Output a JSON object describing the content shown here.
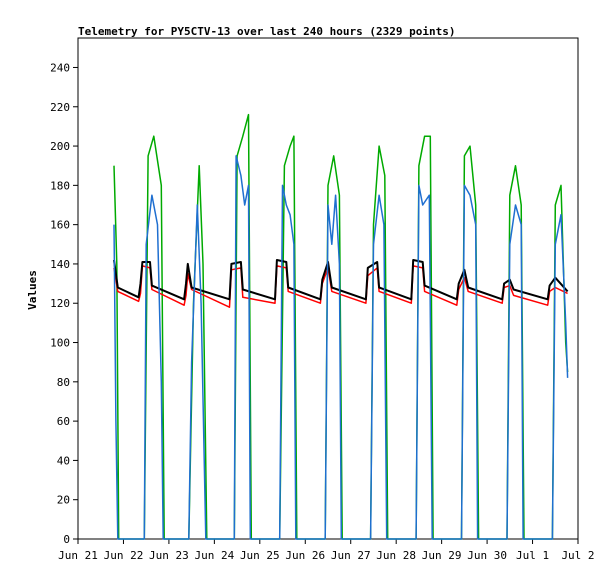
{
  "chart_data": {
    "type": "line",
    "title": "Telemetry for PY5CTV-13 over last 240 hours (2329 points)",
    "xlabel": "",
    "ylabel": "Values",
    "ylim": [
      0,
      255
    ],
    "yticks": [
      0,
      20,
      40,
      60,
      80,
      100,
      120,
      140,
      160,
      180,
      200,
      220,
      240
    ],
    "xlim": [
      "2021-06-21",
      "2021-07-02"
    ],
    "xticks": [
      {
        "date": "2021-06-21",
        "label": "Jun 21"
      },
      {
        "date": "2021-06-22",
        "label": "Jun 22"
      },
      {
        "date": "2021-06-23",
        "label": "Jun 23"
      },
      {
        "date": "2021-06-24",
        "label": "Jun 24"
      },
      {
        "date": "2021-06-25",
        "label": "Jun 25"
      },
      {
        "date": "2021-06-26",
        "label": "Jun 26"
      },
      {
        "date": "2021-06-27",
        "label": "Jun 27"
      },
      {
        "date": "2021-06-28",
        "label": "Jun 28"
      },
      {
        "date": "2021-06-29",
        "label": "Jun 29"
      },
      {
        "date": "2021-06-30",
        "label": "Jun 30"
      },
      {
        "date": "2021-07-01",
        "label": "Jul 1"
      },
      {
        "date": "2021-07-02",
        "label": "Jul 2"
      }
    ],
    "grid": false,
    "legend": "none",
    "series": [
      {
        "color": "#00aa00",
        "points": [
          [
            "2021-06-21T19:00",
            190
          ],
          [
            "2021-06-21T20:30",
            140
          ],
          [
            "2021-06-21T21:30",
            0
          ],
          [
            "2021-06-22T11:00",
            0
          ],
          [
            "2021-06-22T13:00",
            195
          ],
          [
            "2021-06-22T16:00",
            205
          ],
          [
            "2021-06-22T20:00",
            180
          ],
          [
            "2021-06-22T21:30",
            0
          ],
          [
            "2021-06-23T10:30",
            0
          ],
          [
            "2021-06-23T13:00",
            120
          ],
          [
            "2021-06-23T16:00",
            190
          ],
          [
            "2021-06-23T18:00",
            140
          ],
          [
            "2021-06-23T20:00",
            0
          ],
          [
            "2021-06-24T10:30",
            0
          ],
          [
            "2021-06-24T12:00",
            195
          ],
          [
            "2021-06-24T15:00",
            205
          ],
          [
            "2021-06-24T18:00",
            216
          ],
          [
            "2021-06-24T19:30",
            0
          ],
          [
            "2021-06-25T10:30",
            0
          ],
          [
            "2021-06-25T13:00",
            190
          ],
          [
            "2021-06-25T16:00",
            200
          ],
          [
            "2021-06-25T18:00",
            205
          ],
          [
            "2021-06-25T19:30",
            0
          ],
          [
            "2021-06-26T10:30",
            0
          ],
          [
            "2021-06-26T12:00",
            180
          ],
          [
            "2021-06-26T15:00",
            195
          ],
          [
            "2021-06-26T18:00",
            175
          ],
          [
            "2021-06-26T19:30",
            0
          ],
          [
            "2021-06-27T10:30",
            0
          ],
          [
            "2021-06-27T12:00",
            160
          ],
          [
            "2021-06-27T15:00",
            200
          ],
          [
            "2021-06-27T18:00",
            185
          ],
          [
            "2021-06-27T19:30",
            0
          ],
          [
            "2021-06-28T10:30",
            0
          ],
          [
            "2021-06-28T12:00",
            190
          ],
          [
            "2021-06-28T15:00",
            205
          ],
          [
            "2021-06-28T18:00",
            205
          ],
          [
            "2021-06-28T19:30",
            0
          ],
          [
            "2021-06-29T10:30",
            0
          ],
          [
            "2021-06-29T12:00",
            195
          ],
          [
            "2021-06-29T15:00",
            200
          ],
          [
            "2021-06-29T18:00",
            170
          ],
          [
            "2021-06-29T19:30",
            0
          ],
          [
            "2021-06-30T10:30",
            0
          ],
          [
            "2021-06-30T12:00",
            175
          ],
          [
            "2021-06-30T15:00",
            190
          ],
          [
            "2021-06-30T18:00",
            170
          ],
          [
            "2021-06-30T19:30",
            0
          ],
          [
            "2021-07-01T10:30",
            0
          ],
          [
            "2021-07-01T12:00",
            170
          ],
          [
            "2021-07-01T15:00",
            180
          ],
          [
            "2021-07-01T17:30",
            100
          ],
          [
            "2021-07-01T18:30",
            85
          ]
        ]
      },
      {
        "color": "#ff0000",
        "points": [
          [
            "2021-06-21T19:00",
            138
          ],
          [
            "2021-06-21T21:00",
            126
          ],
          [
            "2021-06-22T08:00",
            121
          ],
          [
            "2021-06-22T09:00",
            125
          ],
          [
            "2021-06-22T10:00",
            139
          ],
          [
            "2021-06-22T14:00",
            138
          ],
          [
            "2021-06-22T15:00",
            127
          ],
          [
            "2021-06-23T08:00",
            119
          ],
          [
            "2021-06-23T09:00",
            124
          ],
          [
            "2021-06-23T10:00",
            135
          ],
          [
            "2021-06-23T12:00",
            127
          ],
          [
            "2021-06-24T08:00",
            118
          ],
          [
            "2021-06-24T09:00",
            137
          ],
          [
            "2021-06-24T14:00",
            138
          ],
          [
            "2021-06-24T15:00",
            123
          ],
          [
            "2021-06-25T08:00",
            120
          ],
          [
            "2021-06-25T09:00",
            139
          ],
          [
            "2021-06-25T14:00",
            138
          ],
          [
            "2021-06-25T15:00",
            126
          ],
          [
            "2021-06-26T08:00",
            120
          ],
          [
            "2021-06-26T09:00",
            130
          ],
          [
            "2021-06-26T12:00",
            138
          ],
          [
            "2021-06-26T14:00",
            126
          ],
          [
            "2021-06-27T08:00",
            120
          ],
          [
            "2021-06-27T09:00",
            134
          ],
          [
            "2021-06-27T14:00",
            138
          ],
          [
            "2021-06-27T15:00",
            126
          ],
          [
            "2021-06-28T08:00",
            120
          ],
          [
            "2021-06-28T09:00",
            139
          ],
          [
            "2021-06-28T14:00",
            138
          ],
          [
            "2021-06-28T15:00",
            126
          ],
          [
            "2021-06-29T08:00",
            119
          ],
          [
            "2021-06-29T09:00",
            127
          ],
          [
            "2021-06-29T12:00",
            133
          ],
          [
            "2021-06-29T14:00",
            126
          ],
          [
            "2021-06-30T08:00",
            120
          ],
          [
            "2021-06-30T09:00",
            128
          ],
          [
            "2021-06-30T12:00",
            129
          ],
          [
            "2021-06-30T14:00",
            124
          ],
          [
            "2021-07-01T08:00",
            119
          ],
          [
            "2021-07-01T09:00",
            126
          ],
          [
            "2021-07-01T12:00",
            128
          ],
          [
            "2021-07-01T18:30",
            125
          ]
        ]
      },
      {
        "color": "#000000",
        "points": [
          [
            "2021-06-21T19:00",
            142
          ],
          [
            "2021-06-21T21:00",
            128
          ],
          [
            "2021-06-22T08:00",
            123
          ],
          [
            "2021-06-22T09:00",
            130
          ],
          [
            "2021-06-22T10:00",
            141
          ],
          [
            "2021-06-22T14:00",
            141
          ],
          [
            "2021-06-22T15:00",
            129
          ],
          [
            "2021-06-23T08:00",
            122
          ],
          [
            "2021-06-23T09:00",
            130
          ],
          [
            "2021-06-23T10:00",
            140
          ],
          [
            "2021-06-23T12:00",
            128
          ],
          [
            "2021-06-24T08:00",
            122
          ],
          [
            "2021-06-24T09:00",
            140
          ],
          [
            "2021-06-24T14:00",
            141
          ],
          [
            "2021-06-24T15:00",
            127
          ],
          [
            "2021-06-25T08:00",
            122
          ],
          [
            "2021-06-25T09:00",
            142
          ],
          [
            "2021-06-25T14:00",
            141
          ],
          [
            "2021-06-25T15:00",
            128
          ],
          [
            "2021-06-26T08:00",
            122
          ],
          [
            "2021-06-26T09:00",
            132
          ],
          [
            "2021-06-26T12:00",
            141
          ],
          [
            "2021-06-26T14:00",
            128
          ],
          [
            "2021-06-27T08:00",
            122
          ],
          [
            "2021-06-27T09:00",
            138
          ],
          [
            "2021-06-27T14:00",
            141
          ],
          [
            "2021-06-27T15:00",
            128
          ],
          [
            "2021-06-28T08:00",
            122
          ],
          [
            "2021-06-28T09:00",
            142
          ],
          [
            "2021-06-28T14:00",
            141
          ],
          [
            "2021-06-28T15:00",
            129
          ],
          [
            "2021-06-29T08:00",
            122
          ],
          [
            "2021-06-29T09:00",
            130
          ],
          [
            "2021-06-29T12:00",
            137
          ],
          [
            "2021-06-29T14:00",
            128
          ],
          [
            "2021-06-30T08:00",
            122
          ],
          [
            "2021-06-30T09:00",
            130
          ],
          [
            "2021-06-30T12:00",
            132
          ],
          [
            "2021-06-30T14:00",
            127
          ],
          [
            "2021-07-01T08:00",
            122
          ],
          [
            "2021-07-01T09:00",
            129
          ],
          [
            "2021-07-01T12:00",
            133
          ],
          [
            "2021-07-01T18:30",
            126
          ]
        ]
      },
      {
        "color": "#1f6fd0",
        "points": [
          [
            "2021-06-21T19:00",
            160
          ],
          [
            "2021-06-21T20:00",
            60
          ],
          [
            "2021-06-21T21:00",
            0
          ],
          [
            "2021-06-22T11:00",
            0
          ],
          [
            "2021-06-22T12:00",
            150
          ],
          [
            "2021-06-22T15:00",
            175
          ],
          [
            "2021-06-22T18:00",
            160
          ],
          [
            "2021-06-22T20:00",
            80
          ],
          [
            "2021-06-22T21:00",
            0
          ],
          [
            "2021-06-23T10:30",
            0
          ],
          [
            "2021-06-23T12:00",
            90
          ],
          [
            "2021-06-23T15:00",
            170
          ],
          [
            "2021-06-23T17:00",
            120
          ],
          [
            "2021-06-23T19:30",
            0
          ],
          [
            "2021-06-24T10:30",
            0
          ],
          [
            "2021-06-24T11:30",
            195
          ],
          [
            "2021-06-24T14:00",
            185
          ],
          [
            "2021-06-24T16:00",
            170
          ],
          [
            "2021-06-24T18:00",
            180
          ],
          [
            "2021-06-24T19:00",
            0
          ],
          [
            "2021-06-25T10:30",
            0
          ],
          [
            "2021-06-25T12:00",
            180
          ],
          [
            "2021-06-25T14:00",
            170
          ],
          [
            "2021-06-25T16:00",
            165
          ],
          [
            "2021-06-25T18:00",
            150
          ],
          [
            "2021-06-25T19:00",
            0
          ],
          [
            "2021-06-26T10:30",
            0
          ],
          [
            "2021-06-26T12:00",
            170
          ],
          [
            "2021-06-26T14:00",
            150
          ],
          [
            "2021-06-26T16:00",
            175
          ],
          [
            "2021-06-26T18:00",
            140
          ],
          [
            "2021-06-26T19:00",
            0
          ],
          [
            "2021-06-27T10:30",
            0
          ],
          [
            "2021-06-27T12:00",
            150
          ],
          [
            "2021-06-27T15:00",
            175
          ],
          [
            "2021-06-27T17:30",
            160
          ],
          [
            "2021-06-27T19:00",
            0
          ],
          [
            "2021-06-28T10:30",
            0
          ],
          [
            "2021-06-28T12:00",
            180
          ],
          [
            "2021-06-28T14:00",
            170
          ],
          [
            "2021-06-28T17:30",
            175
          ],
          [
            "2021-06-28T19:00",
            0
          ],
          [
            "2021-06-29T10:30",
            0
          ],
          [
            "2021-06-29T12:00",
            180
          ],
          [
            "2021-06-29T15:00",
            175
          ],
          [
            "2021-06-29T18:00",
            160
          ],
          [
            "2021-06-29T19:00",
            0
          ],
          [
            "2021-06-30T10:30",
            0
          ],
          [
            "2021-06-30T12:00",
            150
          ],
          [
            "2021-06-30T15:00",
            170
          ],
          [
            "2021-06-30T18:00",
            160
          ],
          [
            "2021-06-30T19:00",
            0
          ],
          [
            "2021-07-01T10:30",
            0
          ],
          [
            "2021-07-01T12:00",
            150
          ],
          [
            "2021-07-01T15:00",
            165
          ],
          [
            "2021-07-01T17:30",
            110
          ],
          [
            "2021-07-01T18:30",
            82
          ]
        ]
      }
    ]
  }
}
